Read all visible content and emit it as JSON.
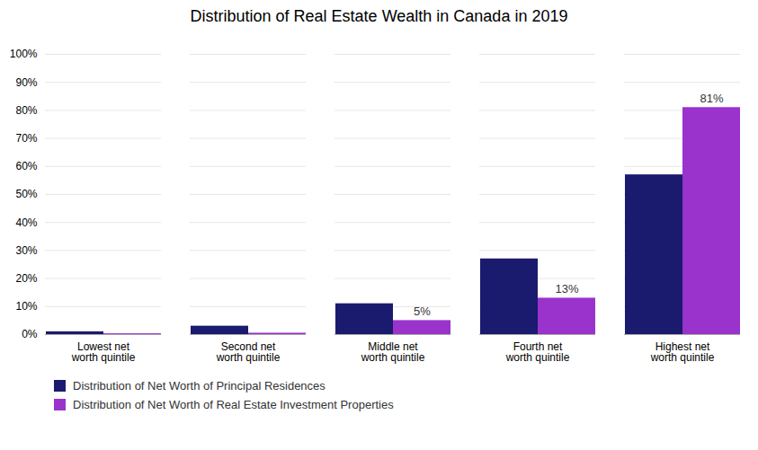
{
  "chart_data": {
    "type": "bar",
    "title": "Distribution of Real Estate Wealth in Canada in 2019",
    "categories": [
      "Lowest net\nworth quintile",
      "Second net\nworth quintile",
      "Middle net\nworth quintile",
      "Fourth net\nworth quintile",
      "Highest net\nworth quintile"
    ],
    "series": [
      {
        "name": "Distribution of Net Worth of Principal Residences",
        "color": "#1a1a6e",
        "values": [
          1,
          3,
          11,
          27,
          57
        ]
      },
      {
        "name": "Distribution of Net Worth of Real Estate Investment Properties",
        "color": "#9933cc",
        "values": [
          0.3,
          0.5,
          5,
          13,
          81
        ],
        "value_labels": [
          null,
          null,
          "5%",
          "13%",
          "81%"
        ]
      }
    ],
    "ylim": [
      0,
      100
    ],
    "yticks": [
      {
        "value": 0,
        "label": "0%"
      },
      {
        "value": 10,
        "label": "10%"
      },
      {
        "value": 20,
        "label": "20%"
      },
      {
        "value": 30,
        "label": "30%"
      },
      {
        "value": 40,
        "label": "40%"
      },
      {
        "value": 50,
        "label": "50%"
      },
      {
        "value": 60,
        "label": "60%"
      },
      {
        "value": 70,
        "label": "70%"
      },
      {
        "value": 80,
        "label": "80%"
      },
      {
        "value": 90,
        "label": "90%"
      },
      {
        "value": 100,
        "label": "100%"
      }
    ],
    "grid": true,
    "legend": "bottom"
  }
}
